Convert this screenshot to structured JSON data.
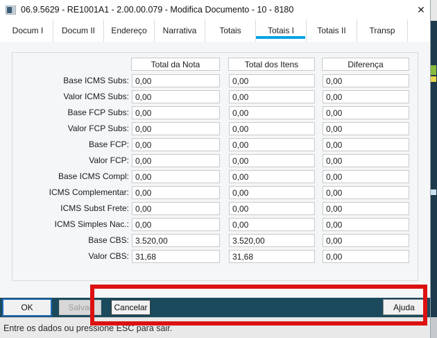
{
  "window": {
    "title": "06.9.5629 - RE1001A1 - 2.00.00.079 - Modifica Documento - 10 - 8180",
    "close_glyph": "✕"
  },
  "tabs": [
    {
      "label": "Docum I",
      "active": false
    },
    {
      "label": "Docum II",
      "active": false
    },
    {
      "label": "Endereço",
      "active": false
    },
    {
      "label": "Narrativa",
      "active": false
    },
    {
      "label": "Totais",
      "active": false
    },
    {
      "label": "Totais I",
      "active": true
    },
    {
      "label": "Totais II",
      "active": false
    },
    {
      "label": "Transp",
      "active": false
    }
  ],
  "table": {
    "columns": [
      "Total da Nota",
      "Total dos Itens",
      "Diferença"
    ],
    "rows": [
      {
        "label": "Base ICMS Subs:",
        "values": [
          "0,00",
          "0,00",
          "0,00"
        ],
        "highlighted": false
      },
      {
        "label": "Valor ICMS Subs:",
        "values": [
          "0,00",
          "0,00",
          "0,00"
        ],
        "highlighted": false
      },
      {
        "label": "Base FCP Subs:",
        "values": [
          "0,00",
          "0,00",
          "0,00"
        ],
        "highlighted": false
      },
      {
        "label": "Valor FCP Subs:",
        "values": [
          "0,00",
          "0,00",
          "0,00"
        ],
        "highlighted": false
      },
      {
        "label": "Base FCP:",
        "values": [
          "0,00",
          "0,00",
          "0,00"
        ],
        "highlighted": false
      },
      {
        "label": "Valor FCP:",
        "values": [
          "0,00",
          "0,00",
          "0,00"
        ],
        "highlighted": false
      },
      {
        "label": "Base ICMS Compl:",
        "values": [
          "0,00",
          "0,00",
          "0,00"
        ],
        "highlighted": false
      },
      {
        "label": "ICMS Complementar:",
        "values": [
          "0,00",
          "0,00",
          "0,00"
        ],
        "highlighted": false
      },
      {
        "label": "ICMS Subst Frete:",
        "values": [
          "0,00",
          "0,00",
          "0,00"
        ],
        "highlighted": false
      },
      {
        "label": "ICMS Simples Nac.:",
        "values": [
          "0,00",
          "0,00",
          "0,00"
        ],
        "highlighted": false
      },
      {
        "label": "Base CBS:",
        "values": [
          "3.520,00",
          "3.520,00",
          "0,00"
        ],
        "highlighted": true
      },
      {
        "label": "Valor CBS:",
        "values": [
          "31,68",
          "31,68",
          "0,00"
        ],
        "highlighted": true
      }
    ]
  },
  "buttons": {
    "ok": "OK",
    "salvar": "Salvar",
    "cancelar": "Cancelar",
    "ajuda": "Ajuda"
  },
  "statusbar": {
    "message": "Entre os dados ou pressione ESC para sair."
  },
  "colors": {
    "tab_accent": "#00a2e3",
    "highlight_red": "#dd1111",
    "button_bar": "#1b4a5c",
    "ok_focus_border": "#1e68b4"
  }
}
